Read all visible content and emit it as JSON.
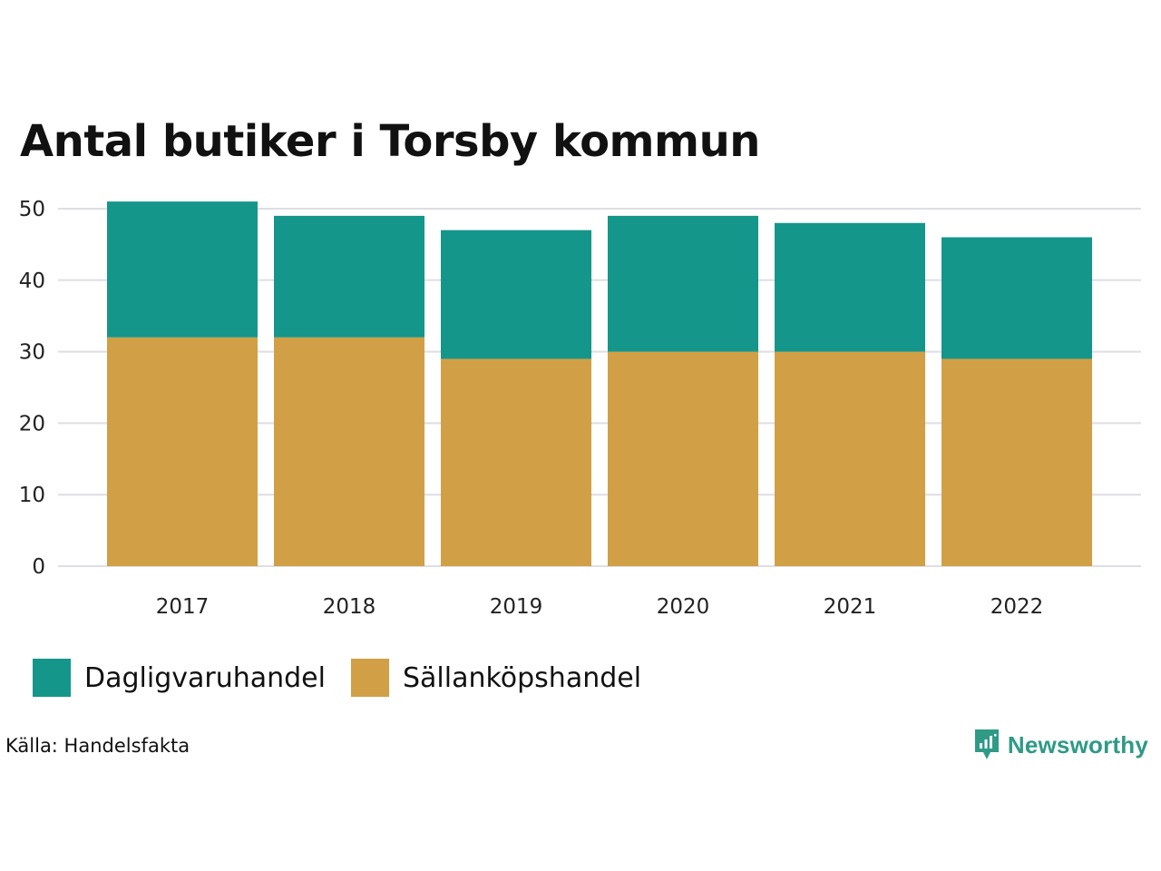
{
  "chart_data": {
    "type": "bar",
    "stacked": true,
    "title": "Antal butiker i Torsby kommun",
    "xlabel": "",
    "ylabel": "",
    "categories": [
      "2017",
      "2018",
      "2019",
      "2020",
      "2021",
      "2022"
    ],
    "series": [
      {
        "name": "Sällanköpshandel",
        "color": "#d19f46",
        "values": [
          32,
          32,
          29,
          30,
          30,
          29
        ]
      },
      {
        "name": "Dagligvaruhandel",
        "color": "#14968a",
        "values": [
          19,
          17,
          18,
          19,
          18,
          17
        ]
      }
    ],
    "ylim": [
      0,
      50
    ],
    "yticks": [
      "0",
      "10",
      "20",
      "30",
      "40",
      "50"
    ],
    "grid": true,
    "legend_position": "bottom-left"
  },
  "legend": {
    "items": [
      {
        "label": "Dagligvaruhandel",
        "color": "#14968a"
      },
      {
        "label": "Sällanköpshandel",
        "color": "#d19f46"
      }
    ]
  },
  "source": "Källa: Handelsfakta",
  "brand": {
    "name": "Newsworthy",
    "color": "#2f9a86"
  }
}
